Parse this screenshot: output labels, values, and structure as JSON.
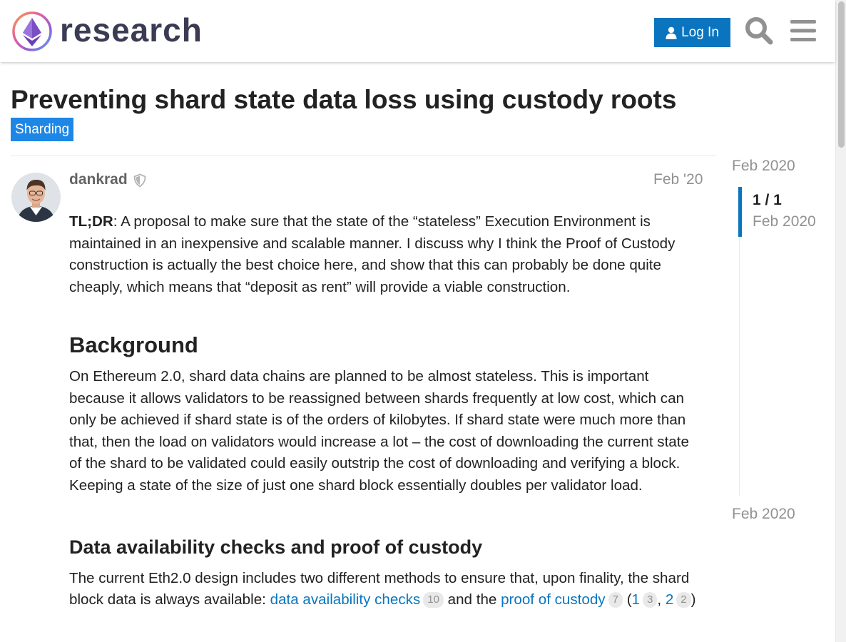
{
  "header": {
    "logo_text": "research",
    "login_label": "Log In"
  },
  "topic": {
    "title": "Preventing shard state data loss using custody roots",
    "category": "Sharding",
    "category_color": "#1e87e5"
  },
  "post": {
    "username": "dankrad",
    "date": "Feb '20",
    "tldr_label": "TL;DR",
    "tldr_text": ": A proposal to make sure that the state of the “stateless” Execution Environment is maintained in an inexpensive and scalable manner. I discuss why I think the Proof of Custody construction is actually the best choice here, and show that this can probably be done quite cheaply, which means that “deposit as rent” will provide a viable construction.",
    "heading_background": "Background",
    "background_text": "On Ethereum 2.0, shard data chains are planned to be almost stateless. This is important because it allows validators to be reassigned between shards frequently at low cost, which can only be achieved if shard state is of the orders of kilobytes. If shard state were much more than that, then the load on validators would increase a lot – the cost of downloading the current state of the shard to be validated could easily outstrip the cost of downloading and verifying a block. Keeping a state of the size of just one shard block essentially doubles per validator load.",
    "heading_da": "Data availability checks and proof of custody",
    "da_text_1": "The current Eth2.0 design includes two different methods to ensure that, upon finality, the shard block data is always available: ",
    "link_da": "data availability checks",
    "link_da_count": "10",
    "da_text_2": " and the ",
    "link_poc": "proof of custody",
    "link_poc_count": "7",
    "paren_open": "(",
    "link_1": "1",
    "link_1_count": "3",
    "comma": ", ",
    "link_2": "2",
    "link_2_count": "2",
    "paren_close": ")"
  },
  "timeline": {
    "date_top": "Feb 2020",
    "position": "1 / 1",
    "position_date": "Feb 2020",
    "date_bottom": "Feb 2020"
  },
  "colors": {
    "accent": "#0a75be",
    "muted": "#919191"
  }
}
